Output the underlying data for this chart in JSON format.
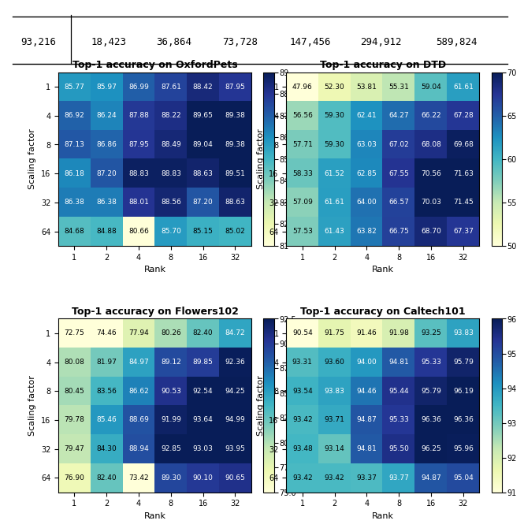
{
  "datasets": [
    {
      "title": "Top-1 accuracy on OxfordPets",
      "values": [
        [
          85.77,
          85.97,
          86.99,
          87.61,
          88.42,
          87.95
        ],
        [
          86.92,
          86.24,
          87.88,
          88.22,
          89.65,
          89.38
        ],
        [
          87.13,
          86.86,
          87.95,
          88.49,
          89.04,
          89.38
        ],
        [
          86.18,
          87.2,
          88.83,
          88.83,
          88.63,
          89.51
        ],
        [
          86.38,
          86.38,
          88.01,
          88.56,
          87.2,
          88.63
        ],
        [
          84.68,
          84.88,
          80.66,
          85.7,
          85.15,
          85.02
        ]
      ],
      "vmin": 81,
      "vmax": 89,
      "colorbar_ticks": [
        81,
        82,
        83,
        84,
        85,
        86,
        87,
        88,
        89
      ]
    },
    {
      "title": "Top-1 accuracy on DTD",
      "values": [
        [
          47.96,
          52.3,
          53.81,
          55.31,
          59.04,
          61.61
        ],
        [
          56.56,
          59.3,
          62.41,
          64.27,
          66.22,
          67.28
        ],
        [
          57.71,
          59.3,
          63.03,
          67.02,
          68.08,
          69.68
        ],
        [
          58.33,
          61.52,
          62.85,
          67.55,
          70.56,
          71.63
        ],
        [
          57.09,
          61.61,
          64.0,
          66.57,
          70.03,
          71.45
        ],
        [
          57.53,
          61.43,
          63.82,
          66.75,
          68.7,
          67.37
        ]
      ],
      "vmin": 50,
      "vmax": 70,
      "colorbar_ticks": [
        50,
        55,
        60,
        65,
        70
      ]
    },
    {
      "title": "Top-1 accuracy on Flowers102",
      "values": [
        [
          72.75,
          74.46,
          77.94,
          80.26,
          82.4,
          84.72
        ],
        [
          80.08,
          81.97,
          84.97,
          89.12,
          89.85,
          92.36
        ],
        [
          80.45,
          83.56,
          86.62,
          90.53,
          92.54,
          94.25
        ],
        [
          79.78,
          85.46,
          88.69,
          91.99,
          93.64,
          94.99
        ],
        [
          79.47,
          84.3,
          88.94,
          92.85,
          93.03,
          93.95
        ],
        [
          76.9,
          82.4,
          73.42,
          89.3,
          90.1,
          90.65
        ]
      ],
      "vmin": 75.0,
      "vmax": 92.5,
      "colorbar_ticks": [
        75.0,
        77.5,
        80.0,
        82.5,
        85.0,
        87.5,
        90.0,
        92.5
      ]
    },
    {
      "title": "Top-1 accuracy on Caltech101",
      "values": [
        [
          90.54,
          91.75,
          91.46,
          91.98,
          93.25,
          93.83
        ],
        [
          93.31,
          93.6,
          94.0,
          94.81,
          95.33,
          95.79
        ],
        [
          93.54,
          93.83,
          94.46,
          95.44,
          95.79,
          96.19
        ],
        [
          93.42,
          93.71,
          94.87,
          95.33,
          96.36,
          96.36
        ],
        [
          93.48,
          93.14,
          94.81,
          95.5,
          96.25,
          95.96
        ],
        [
          93.42,
          93.42,
          93.37,
          93.77,
          94.87,
          95.04
        ]
      ],
      "vmin": 91,
      "vmax": 96,
      "colorbar_ticks": [
        91,
        92,
        93,
        94,
        95,
        96
      ]
    }
  ],
  "x_labels": [
    "1",
    "2",
    "4",
    "8",
    "16",
    "32"
  ],
  "y_labels": [
    "1",
    "4",
    "8",
    "16",
    "32",
    "64"
  ],
  "xlabel": "Rank",
  "ylabel": "Scaling factor",
  "cmap": "YlGnBu",
  "header_numbers": [
    "93,216",
    "18,423",
    "36,864",
    "73,728",
    "147,456",
    "294,912",
    "589,824"
  ],
  "text_threshold_light": 0.55,
  "fontsize_cell": 6.5,
  "fontsize_title": 9,
  "fontsize_axis": 8,
  "fontsize_tick": 7,
  "fontsize_header": 9
}
